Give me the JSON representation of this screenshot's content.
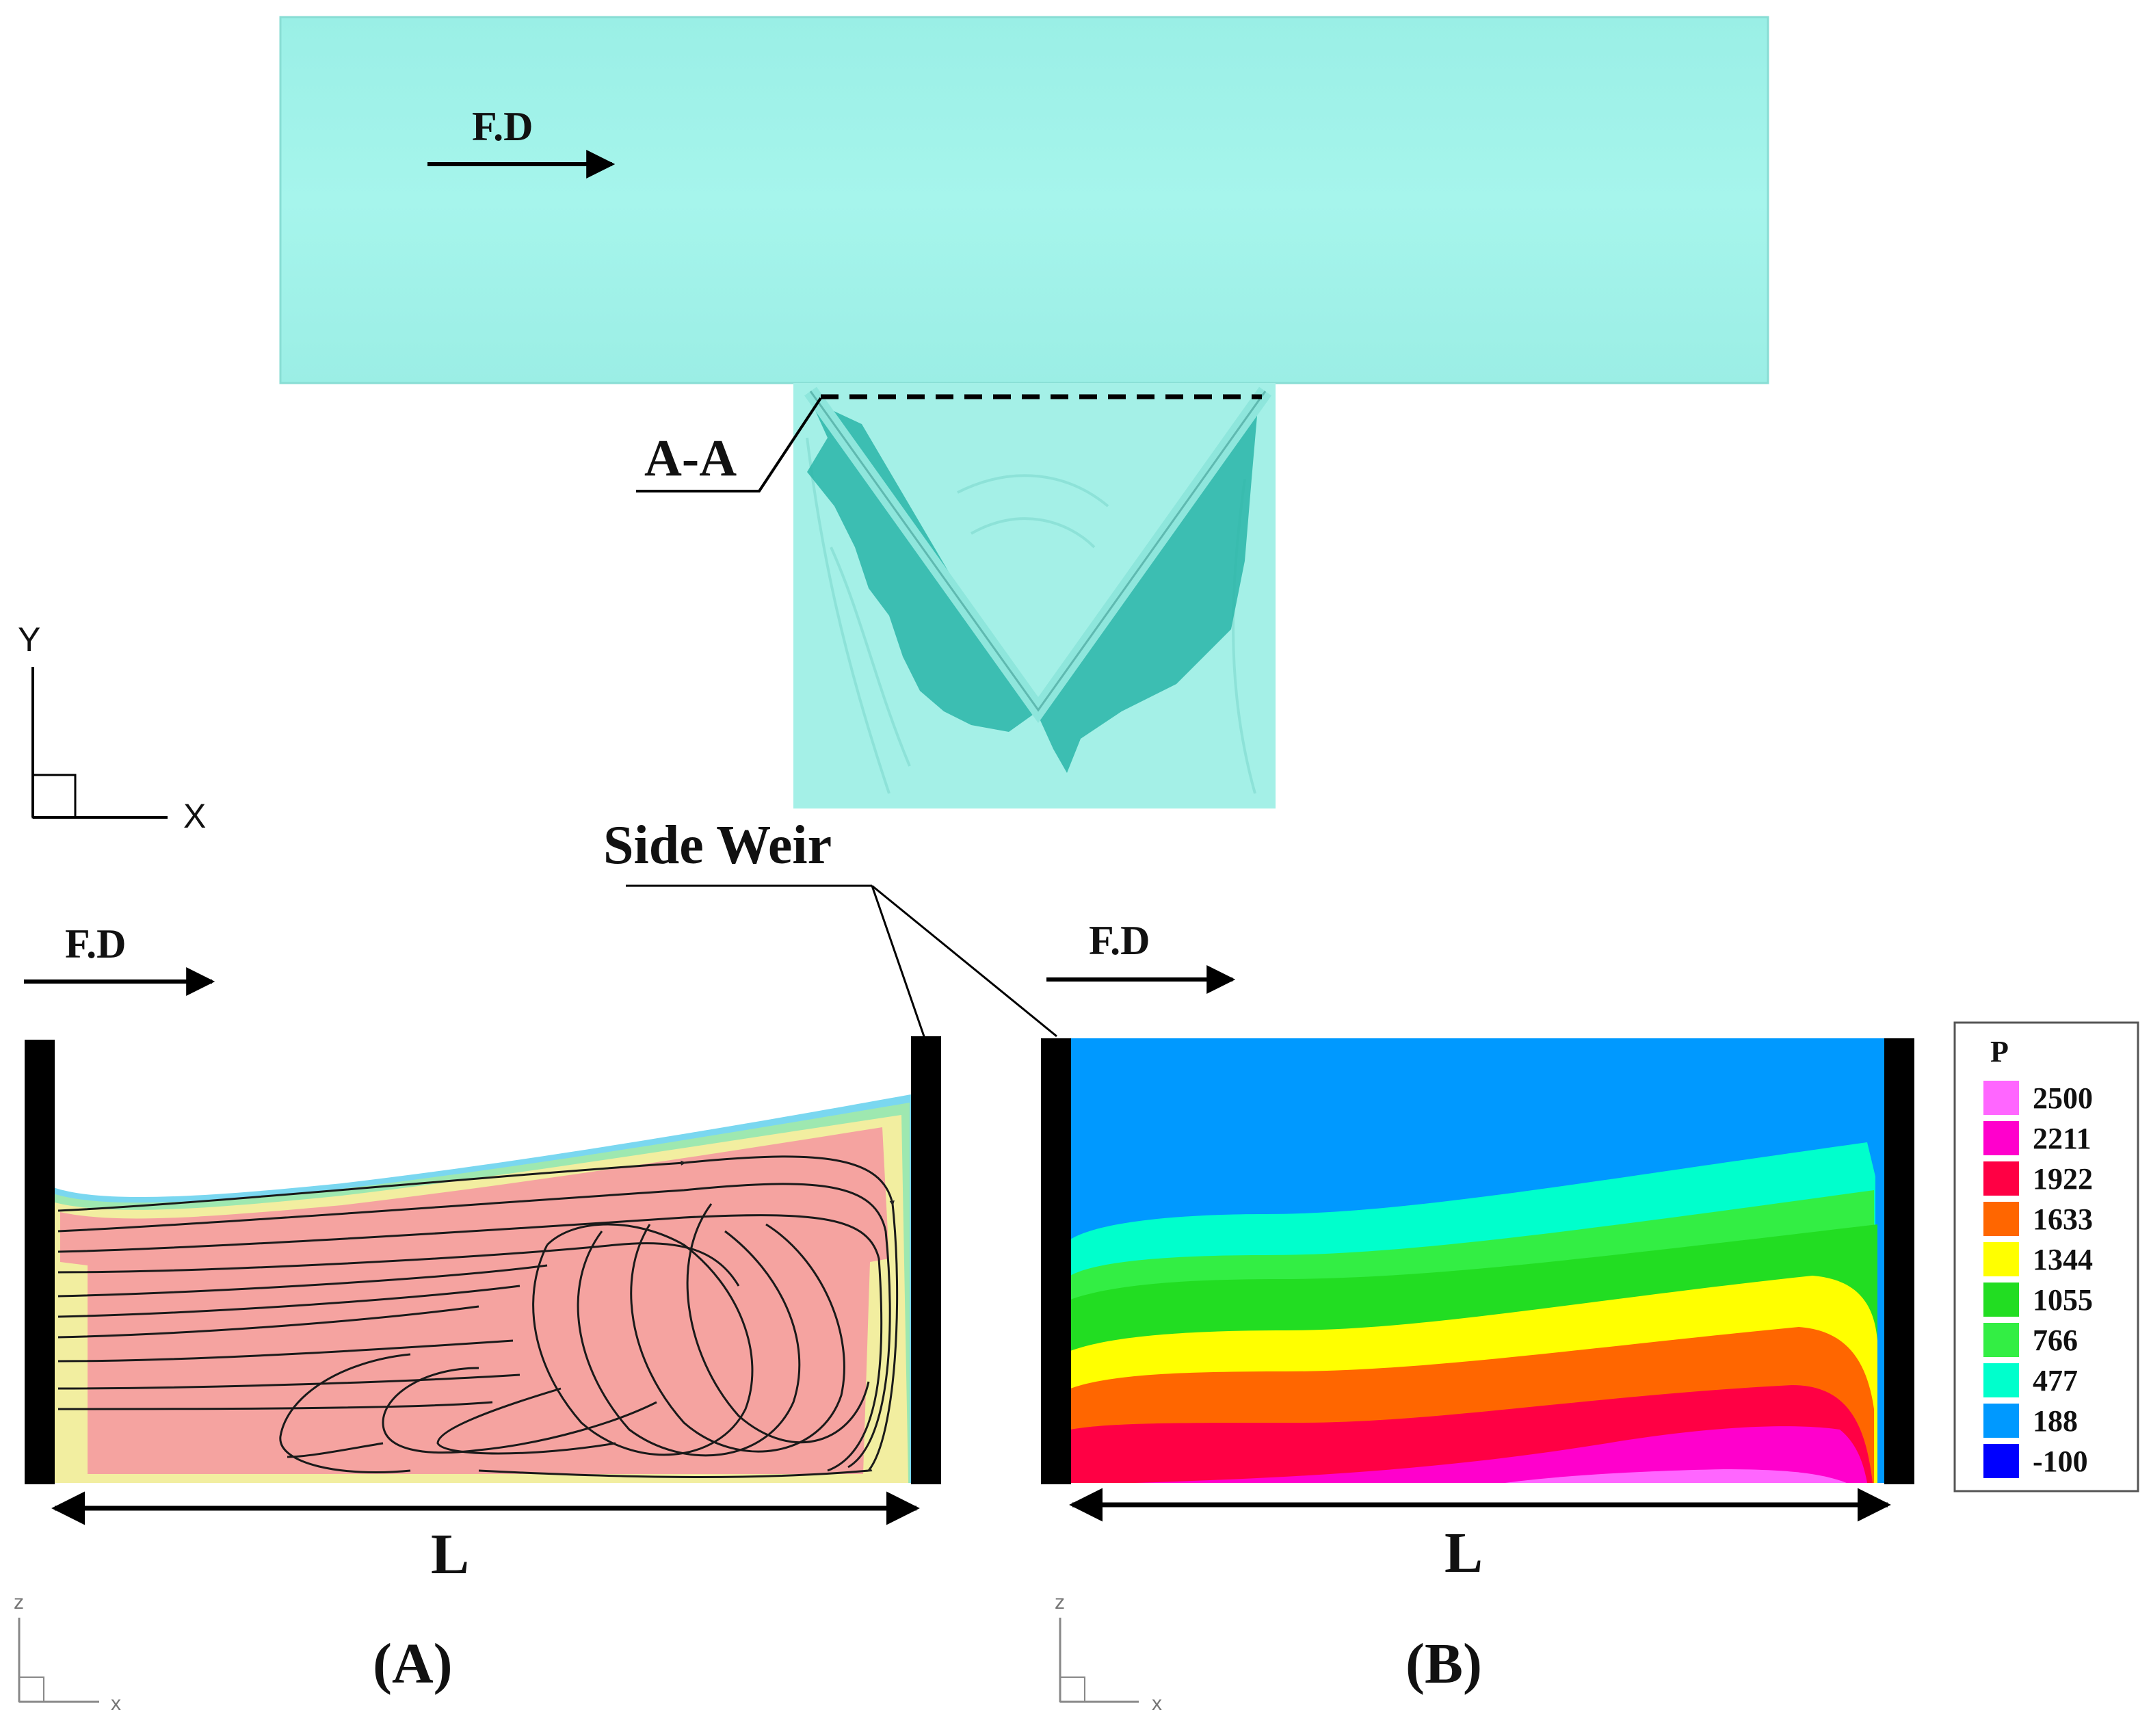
{
  "top_view": {
    "flow_label": "F.D",
    "section_label": "A-A",
    "side_weir_label": "Side Weir",
    "axis_x": "X",
    "axis_y": "Y"
  },
  "panel_a": {
    "flow_label": "F.D",
    "length_label": "L",
    "panel_label": "(A)",
    "axis_x": "x",
    "axis_z": "z"
  },
  "panel_b": {
    "flow_label": "F.D",
    "length_label": "L",
    "panel_label": "(B)",
    "axis_x": "x",
    "axis_z": "z"
  },
  "legend": {
    "title": "P",
    "levels": [
      {
        "value": "2500",
        "color": "#ff66ff"
      },
      {
        "value": "2211",
        "color": "#ff00cc"
      },
      {
        "value": "1922",
        "color": "#ff0044"
      },
      {
        "value": "1633",
        "color": "#ff6600"
      },
      {
        "value": "1344",
        "color": "#ffff00"
      },
      {
        "value": "1055",
        "color": "#22dd22"
      },
      {
        "value": "766",
        "color": "#33ee44"
      },
      {
        "value": "477",
        "color": "#00ffcc"
      },
      {
        "value": "188",
        "color": "#0099ff"
      },
      {
        "value": "-100",
        "color": "#0000ff"
      }
    ]
  },
  "colors": {
    "channel_fill": "#a2f3ea",
    "weir_fill": "#2ab5a8",
    "cavity_fill": "#f5a3a0"
  }
}
